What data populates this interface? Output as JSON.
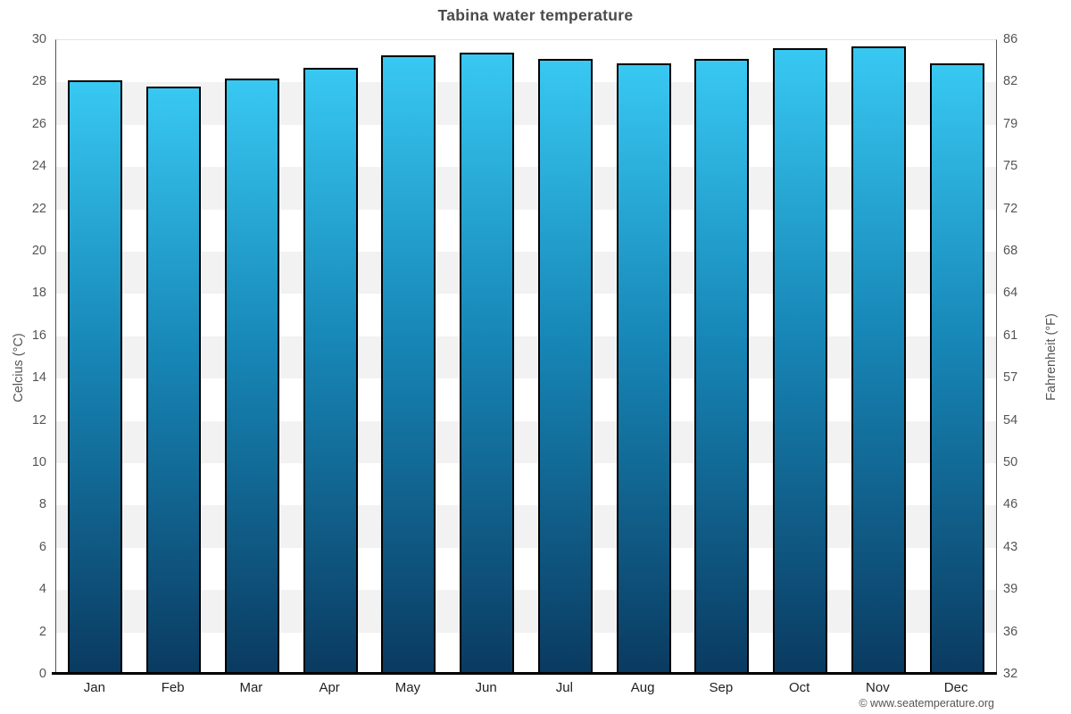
{
  "title": "Tabina water temperature",
  "footer": "© www.seatemperature.org",
  "chart_data": {
    "type": "bar",
    "title": "Tabina water temperature",
    "categories": [
      "Jan",
      "Feb",
      "Mar",
      "Apr",
      "May",
      "Jun",
      "Jul",
      "Aug",
      "Sep",
      "Oct",
      "Nov",
      "Dec"
    ],
    "values": [
      28.1,
      27.8,
      28.2,
      28.7,
      29.3,
      29.4,
      29.1,
      28.9,
      29.1,
      29.6,
      29.7,
      28.9
    ],
    "ylabel_left": "Celcius (°C)",
    "ylabel_right": "Fahrenheit (°F)",
    "ylim": [
      0,
      30
    ],
    "celsius_ticks": [
      30,
      28,
      26,
      24,
      22,
      20,
      18,
      16,
      14,
      12,
      10,
      8,
      6,
      4,
      2,
      0
    ],
    "fahrenheit_ticks": [
      86,
      82,
      79,
      75,
      72,
      68,
      64,
      61,
      57,
      54,
      50,
      46,
      43,
      39,
      36,
      32
    ],
    "grid": "alternating horizontal bands every 2°C",
    "legend": "none"
  },
  "colors": {
    "bar_gradient_top": "#38c8f2",
    "bar_gradient_bottom": "#0a3a60",
    "bar_border": "#000000",
    "band_gray": "#f2f2f2",
    "band_white": "#ffffff",
    "title_text": "#4a4a4a",
    "tick_text": "#555555",
    "month_text": "#222222",
    "axis_side_line": "#555555",
    "axis_baseline": "#000000",
    "footer_text": "#555555"
  }
}
